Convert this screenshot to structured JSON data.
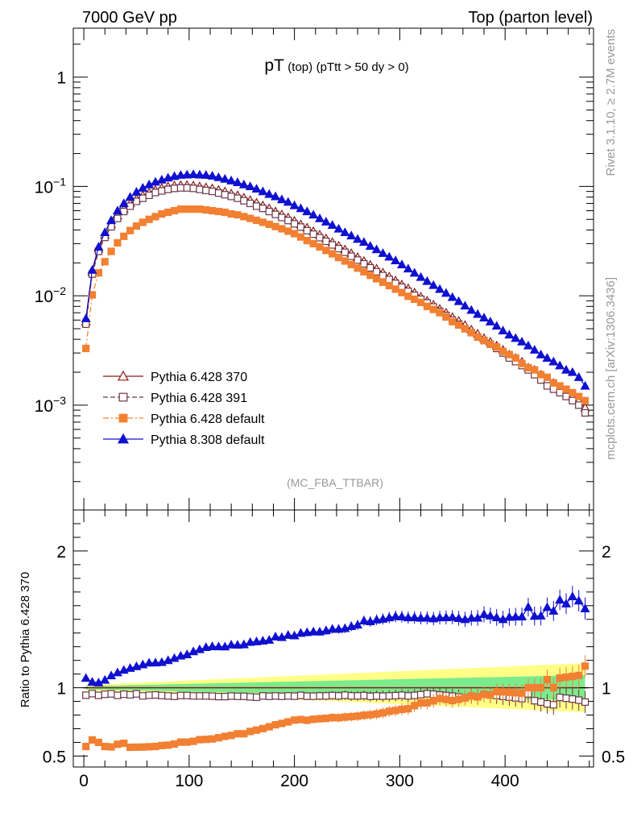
{
  "header": {
    "left": "7000 GeV pp",
    "right": "Top (parton level)"
  },
  "side_labels": {
    "rivet": "Rivet 3.1.10, ≥ 2.7M events",
    "mcplots": "mcplots.cern.ch [arXiv:1306.3436]"
  },
  "chart_data": [
    {
      "type": "line",
      "title_main": "pT",
      "title_sub1": "(top)",
      "title_sub2": "(pTtt > 50 dy > 0)",
      "watermark": "(MC_FBA_TTBAR)",
      "yscale": "log",
      "xlim": [
        -10,
        484
      ],
      "ylim": [
        0.00011,
        2.8
      ],
      "ytick_labels": [
        "1",
        "10",
        "10",
        "10"
      ],
      "ytick_exponents": [
        "",
        "−1",
        "−2",
        "−3"
      ],
      "legend": {
        "placement": "lower-left",
        "entries": [
          "Pythia 6.428 370",
          "Pythia 6.428 391",
          "Pythia 6.428 default",
          "Pythia 8.308 default"
        ]
      },
      "x": [
        2,
        8,
        14,
        20,
        26,
        32,
        38,
        44,
        50,
        56,
        62,
        68,
        74,
        80,
        86,
        92,
        98,
        104,
        110,
        116,
        122,
        128,
        134,
        140,
        146,
        152,
        158,
        164,
        170,
        176,
        182,
        188,
        194,
        200,
        206,
        212,
        218,
        224,
        230,
        236,
        242,
        248,
        254,
        260,
        266,
        272,
        278,
        284,
        290,
        296,
        302,
        308,
        314,
        320,
        326,
        332,
        338,
        344,
        350,
        356,
        362,
        368,
        374,
        380,
        386,
        392,
        398,
        404,
        410,
        416,
        422,
        428,
        434,
        440,
        446,
        452,
        458,
        464,
        470,
        476
      ],
      "series": [
        {
          "name": "Pythia 6.428 370",
          "color": "#8B1A1A",
          "marker": "open-triangle",
          "dash": "solid",
          "values": [
            0.0058,
            0.0165,
            0.027,
            0.036,
            0.045,
            0.054,
            0.062,
            0.07,
            0.077,
            0.083,
            0.088,
            0.093,
            0.097,
            0.1,
            0.102,
            0.103,
            0.103,
            0.102,
            0.1,
            0.098,
            0.096,
            0.093,
            0.09,
            0.086,
            0.083,
            0.079,
            0.075,
            0.071,
            0.067,
            0.063,
            0.059,
            0.0555,
            0.052,
            0.0485,
            0.045,
            0.042,
            0.039,
            0.0362,
            0.0335,
            0.031,
            0.0287,
            0.0265,
            0.0245,
            0.0226,
            0.0208,
            0.0192,
            0.0177,
            0.0163,
            0.015,
            0.0138,
            0.0127,
            0.0117,
            0.0107,
            0.0098,
            0.009,
            0.0083,
            0.0076,
            0.007,
            0.0064,
            0.0059,
            0.0054,
            0.0049,
            0.0045,
            0.0041,
            0.0038,
            0.0035,
            0.0032,
            0.0029,
            0.0027,
            0.0025,
            0.0022,
            0.0021,
            0.0019,
            0.0017,
            0.0016,
            0.0014,
            0.0013,
            0.0012,
            0.0011,
            0.00095
          ]
        },
        {
          "name": "Pythia 6.428 391",
          "color": "#6B3545",
          "marker": "open-square",
          "dash": "dashed",
          "values": [
            0.0055,
            0.0158,
            0.0255,
            0.0342,
            0.0428,
            0.051,
            0.059,
            0.066,
            0.073,
            0.078,
            0.083,
            0.088,
            0.091,
            0.094,
            0.096,
            0.097,
            0.097,
            0.096,
            0.094,
            0.092,
            0.09,
            0.087,
            0.084,
            0.081,
            0.078,
            0.074,
            0.07,
            0.066,
            0.063,
            0.059,
            0.0555,
            0.052,
            0.0488,
            0.0455,
            0.0425,
            0.0394,
            0.0366,
            0.034,
            0.0315,
            0.0292,
            0.027,
            0.025,
            0.023,
            0.0212,
            0.0196,
            0.018,
            0.0166,
            0.0153,
            0.0141,
            0.013,
            0.012,
            0.011,
            0.0101,
            0.0093,
            0.0086,
            0.0079,
            0.0072,
            0.0066,
            0.006,
            0.0055,
            0.005,
            0.0046,
            0.0042,
            0.0039,
            0.0036,
            0.0033,
            0.003,
            0.0027,
            0.0025,
            0.0023,
            0.0021,
            0.0019,
            0.0017,
            0.0015,
            0.0014,
            0.0013,
            0.0012,
            0.0011,
            0.001,
            0.00085
          ]
        },
        {
          "name": "Pythia 6.428 default",
          "color": "#F28033",
          "marker": "filled-square",
          "dash": "dashdot",
          "values": [
            0.0033,
            0.0102,
            0.0162,
            0.0205,
            0.0255,
            0.0305,
            0.035,
            0.0395,
            0.0435,
            0.047,
            0.05,
            0.053,
            0.056,
            0.058,
            0.06,
            0.062,
            0.062,
            0.062,
            0.062,
            0.061,
            0.06,
            0.059,
            0.058,
            0.056,
            0.055,
            0.053,
            0.051,
            0.049,
            0.047,
            0.045,
            0.043,
            0.041,
            0.039,
            0.037,
            0.0345,
            0.032,
            0.03,
            0.028,
            0.026,
            0.0242,
            0.0224,
            0.0208,
            0.0193,
            0.0179,
            0.0166,
            0.0154,
            0.0143,
            0.0133,
            0.0124,
            0.0115,
            0.0107,
            0.0099,
            0.0093,
            0.0087,
            0.008,
            0.0075,
            0.007,
            0.0064,
            0.0058,
            0.0054,
            0.005,
            0.0046,
            0.0042,
            0.0039,
            0.0036,
            0.0034,
            0.0031,
            0.0029,
            0.0027,
            0.0024,
            0.0022,
            0.0021,
            0.0019,
            0.0018,
            0.0016,
            0.0015,
            0.0014,
            0.0013,
            0.0012,
            0.0011
          ]
        },
        {
          "name": "Pythia 8.308 default",
          "color": "#1010D0",
          "marker": "filled-triangle",
          "dash": "solid",
          "values": [
            0.0062,
            0.0172,
            0.028,
            0.038,
            0.049,
            0.06,
            0.07,
            0.08,
            0.089,
            0.097,
            0.104,
            0.11,
            0.115,
            0.12,
            0.124,
            0.127,
            0.128,
            0.129,
            0.128,
            0.127,
            0.125,
            0.121,
            0.117,
            0.113,
            0.109,
            0.104,
            0.1,
            0.095,
            0.09,
            0.085,
            0.081,
            0.076,
            0.072,
            0.067,
            0.063,
            0.059,
            0.055,
            0.051,
            0.0475,
            0.0443,
            0.041,
            0.038,
            0.0355,
            0.033,
            0.031,
            0.0285,
            0.0265,
            0.0245,
            0.0227,
            0.021,
            0.0193,
            0.0177,
            0.0162,
            0.0148,
            0.0136,
            0.0125,
            0.0115,
            0.0106,
            0.0097,
            0.0089,
            0.0081,
            0.0074,
            0.0068,
            0.0063,
            0.0058,
            0.0053,
            0.0048,
            0.0044,
            0.0041,
            0.0038,
            0.0035,
            0.0032,
            0.0029,
            0.0027,
            0.0025,
            0.0023,
            0.0021,
            0.002,
            0.0018,
            0.0015
          ]
        }
      ]
    },
    {
      "type": "line",
      "ylabel": "Ratio to Pythia 6.428 370",
      "ylim": [
        0.42,
        2.3
      ],
      "yticks": [
        0.5,
        1,
        2
      ],
      "ytick_labels": [
        "0.5",
        "1",
        "2"
      ],
      "xlim": [
        -10,
        484
      ],
      "xticks": [
        0,
        100,
        200,
        300,
        400
      ],
      "xtick_labels": [
        "0",
        "100",
        "200",
        "300",
        "400"
      ],
      "reference_line": 1,
      "band_colors": {
        "inner": "#7CEB8C",
        "outer": "#FFFF88"
      },
      "series": [
        {
          "name": "Pythia 6.428 391",
          "values": [
            0.945,
            0.957,
            0.944,
            0.952,
            0.955,
            0.944,
            0.952,
            0.948,
            0.955,
            0.94,
            0.945,
            0.947,
            0.943,
            0.94,
            0.937,
            0.943,
            0.943,
            0.94,
            0.94,
            0.94,
            0.938,
            0.935,
            0.935,
            0.939,
            0.937,
            0.937,
            0.933,
            0.93,
            0.94,
            0.937,
            0.94,
            0.937,
            0.94,
            0.938,
            0.944,
            0.938,
            0.938,
            0.94,
            0.94,
            0.943,
            0.94,
            0.945,
            0.94,
            0.94,
            0.943,
            0.937,
            0.94,
            0.938,
            0.94,
            0.942,
            0.945,
            0.94,
            0.944,
            0.949,
            0.956,
            0.952,
            0.947,
            0.943,
            0.938,
            0.932,
            0.926,
            0.939,
            0.933,
            0.951,
            0.947,
            0.943,
            0.937,
            0.931,
            0.926,
            0.92,
            0.955,
            0.905,
            0.895,
            0.882,
            0.875,
            0.929,
            0.923,
            0.917,
            0.909,
            0.895
          ]
        },
        {
          "name": "Pythia 6.428 default",
          "values": [
            0.57,
            0.618,
            0.6,
            0.57,
            0.567,
            0.586,
            0.593,
            0.564,
            0.565,
            0.566,
            0.568,
            0.57,
            0.577,
            0.58,
            0.588,
            0.602,
            0.602,
            0.608,
            0.62,
            0.622,
            0.625,
            0.634,
            0.644,
            0.651,
            0.663,
            0.663,
            0.68,
            0.69,
            0.701,
            0.714,
            0.729,
            0.739,
            0.75,
            0.763,
            0.767,
            0.762,
            0.769,
            0.773,
            0.776,
            0.781,
            0.78,
            0.785,
            0.788,
            0.792,
            0.798,
            0.802,
            0.808,
            0.816,
            0.827,
            0.833,
            0.842,
            0.846,
            0.869,
            0.888,
            0.889,
            0.904,
            0.921,
            0.914,
            0.906,
            0.915,
            0.926,
            0.939,
            0.933,
            0.951,
            0.947,
            0.971,
            0.969,
            0.966,
            0.963,
            0.96,
            1.0,
            1.0,
            1.0,
            1.059,
            1.0,
            1.071,
            1.077,
            1.083,
            1.09,
            1.158
          ]
        },
        {
          "name": "Pythia 8.308 default",
          "values": [
            1.07,
            1.042,
            1.037,
            1.056,
            1.089,
            1.111,
            1.129,
            1.143,
            1.156,
            1.169,
            1.182,
            1.183,
            1.186,
            1.2,
            1.216,
            1.233,
            1.243,
            1.265,
            1.28,
            1.296,
            1.302,
            1.301,
            1.3,
            1.314,
            1.313,
            1.316,
            1.333,
            1.338,
            1.343,
            1.349,
            1.373,
            1.369,
            1.385,
            1.381,
            1.4,
            1.405,
            1.41,
            1.409,
            1.418,
            1.429,
            1.429,
            1.434,
            1.449,
            1.46,
            1.49,
            1.484,
            1.497,
            1.503,
            1.513,
            1.522,
            1.52,
            1.513,
            1.514,
            1.51,
            1.511,
            1.506,
            1.513,
            1.514,
            1.516,
            1.508,
            1.5,
            1.51,
            1.511,
            1.537,
            1.526,
            1.514,
            1.5,
            1.517,
            1.519,
            1.52,
            1.59,
            1.524,
            1.526,
            1.588,
            1.562,
            1.643,
            1.615,
            1.667,
            1.636,
            1.579
          ]
        }
      ]
    }
  ]
}
